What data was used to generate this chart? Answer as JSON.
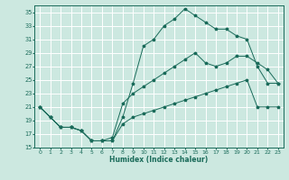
{
  "title": "",
  "xlabel": "Humidex (Indice chaleur)",
  "bg_color": "#cce8e0",
  "line_color": "#1a6b5a",
  "grid_color": "#ffffff",
  "xlim": [
    -0.5,
    23.5
  ],
  "ylim": [
    15,
    36
  ],
  "xticks": [
    0,
    1,
    2,
    3,
    4,
    5,
    6,
    7,
    8,
    9,
    10,
    11,
    12,
    13,
    14,
    15,
    16,
    17,
    18,
    19,
    20,
    21,
    22,
    23
  ],
  "yticks": [
    15,
    17,
    19,
    21,
    23,
    25,
    27,
    29,
    31,
    33,
    35
  ],
  "line1_x": [
    0,
    1,
    2,
    3,
    4,
    5,
    6,
    7,
    8,
    9,
    10,
    11,
    12,
    13,
    14,
    15,
    16,
    17,
    18,
    19,
    20,
    21,
    22,
    23
  ],
  "line1_y": [
    21,
    19.5,
    18,
    18,
    17.5,
    16,
    16,
    16,
    19.5,
    24.5,
    30.0,
    31.0,
    33.0,
    34.0,
    35.5,
    34.5,
    33.5,
    32.5,
    32.5,
    31.5,
    31.0,
    27.0,
    24.5,
    24.5
  ],
  "line2_x": [
    0,
    1,
    2,
    3,
    4,
    5,
    6,
    7,
    8,
    9,
    10,
    11,
    12,
    13,
    14,
    15,
    16,
    17,
    18,
    19,
    20,
    21,
    22,
    23
  ],
  "line2_y": [
    21,
    19.5,
    18,
    18,
    17.5,
    16,
    16,
    16.5,
    21.5,
    23.0,
    24.0,
    25.0,
    26.0,
    27.0,
    28.0,
    29.0,
    27.5,
    27.0,
    27.5,
    28.5,
    28.5,
    27.5,
    26.5,
    24.5
  ],
  "line3_x": [
    0,
    1,
    2,
    3,
    4,
    5,
    6,
    7,
    8,
    9,
    10,
    11,
    12,
    13,
    14,
    15,
    16,
    17,
    18,
    19,
    20,
    21,
    22,
    23
  ],
  "line3_y": [
    21,
    19.5,
    18,
    18,
    17.5,
    16,
    16,
    16.0,
    18.5,
    19.5,
    20.0,
    20.5,
    21.0,
    21.5,
    22.0,
    22.5,
    23.0,
    23.5,
    24.0,
    24.5,
    25.0,
    21.0,
    21.0,
    21.0
  ]
}
